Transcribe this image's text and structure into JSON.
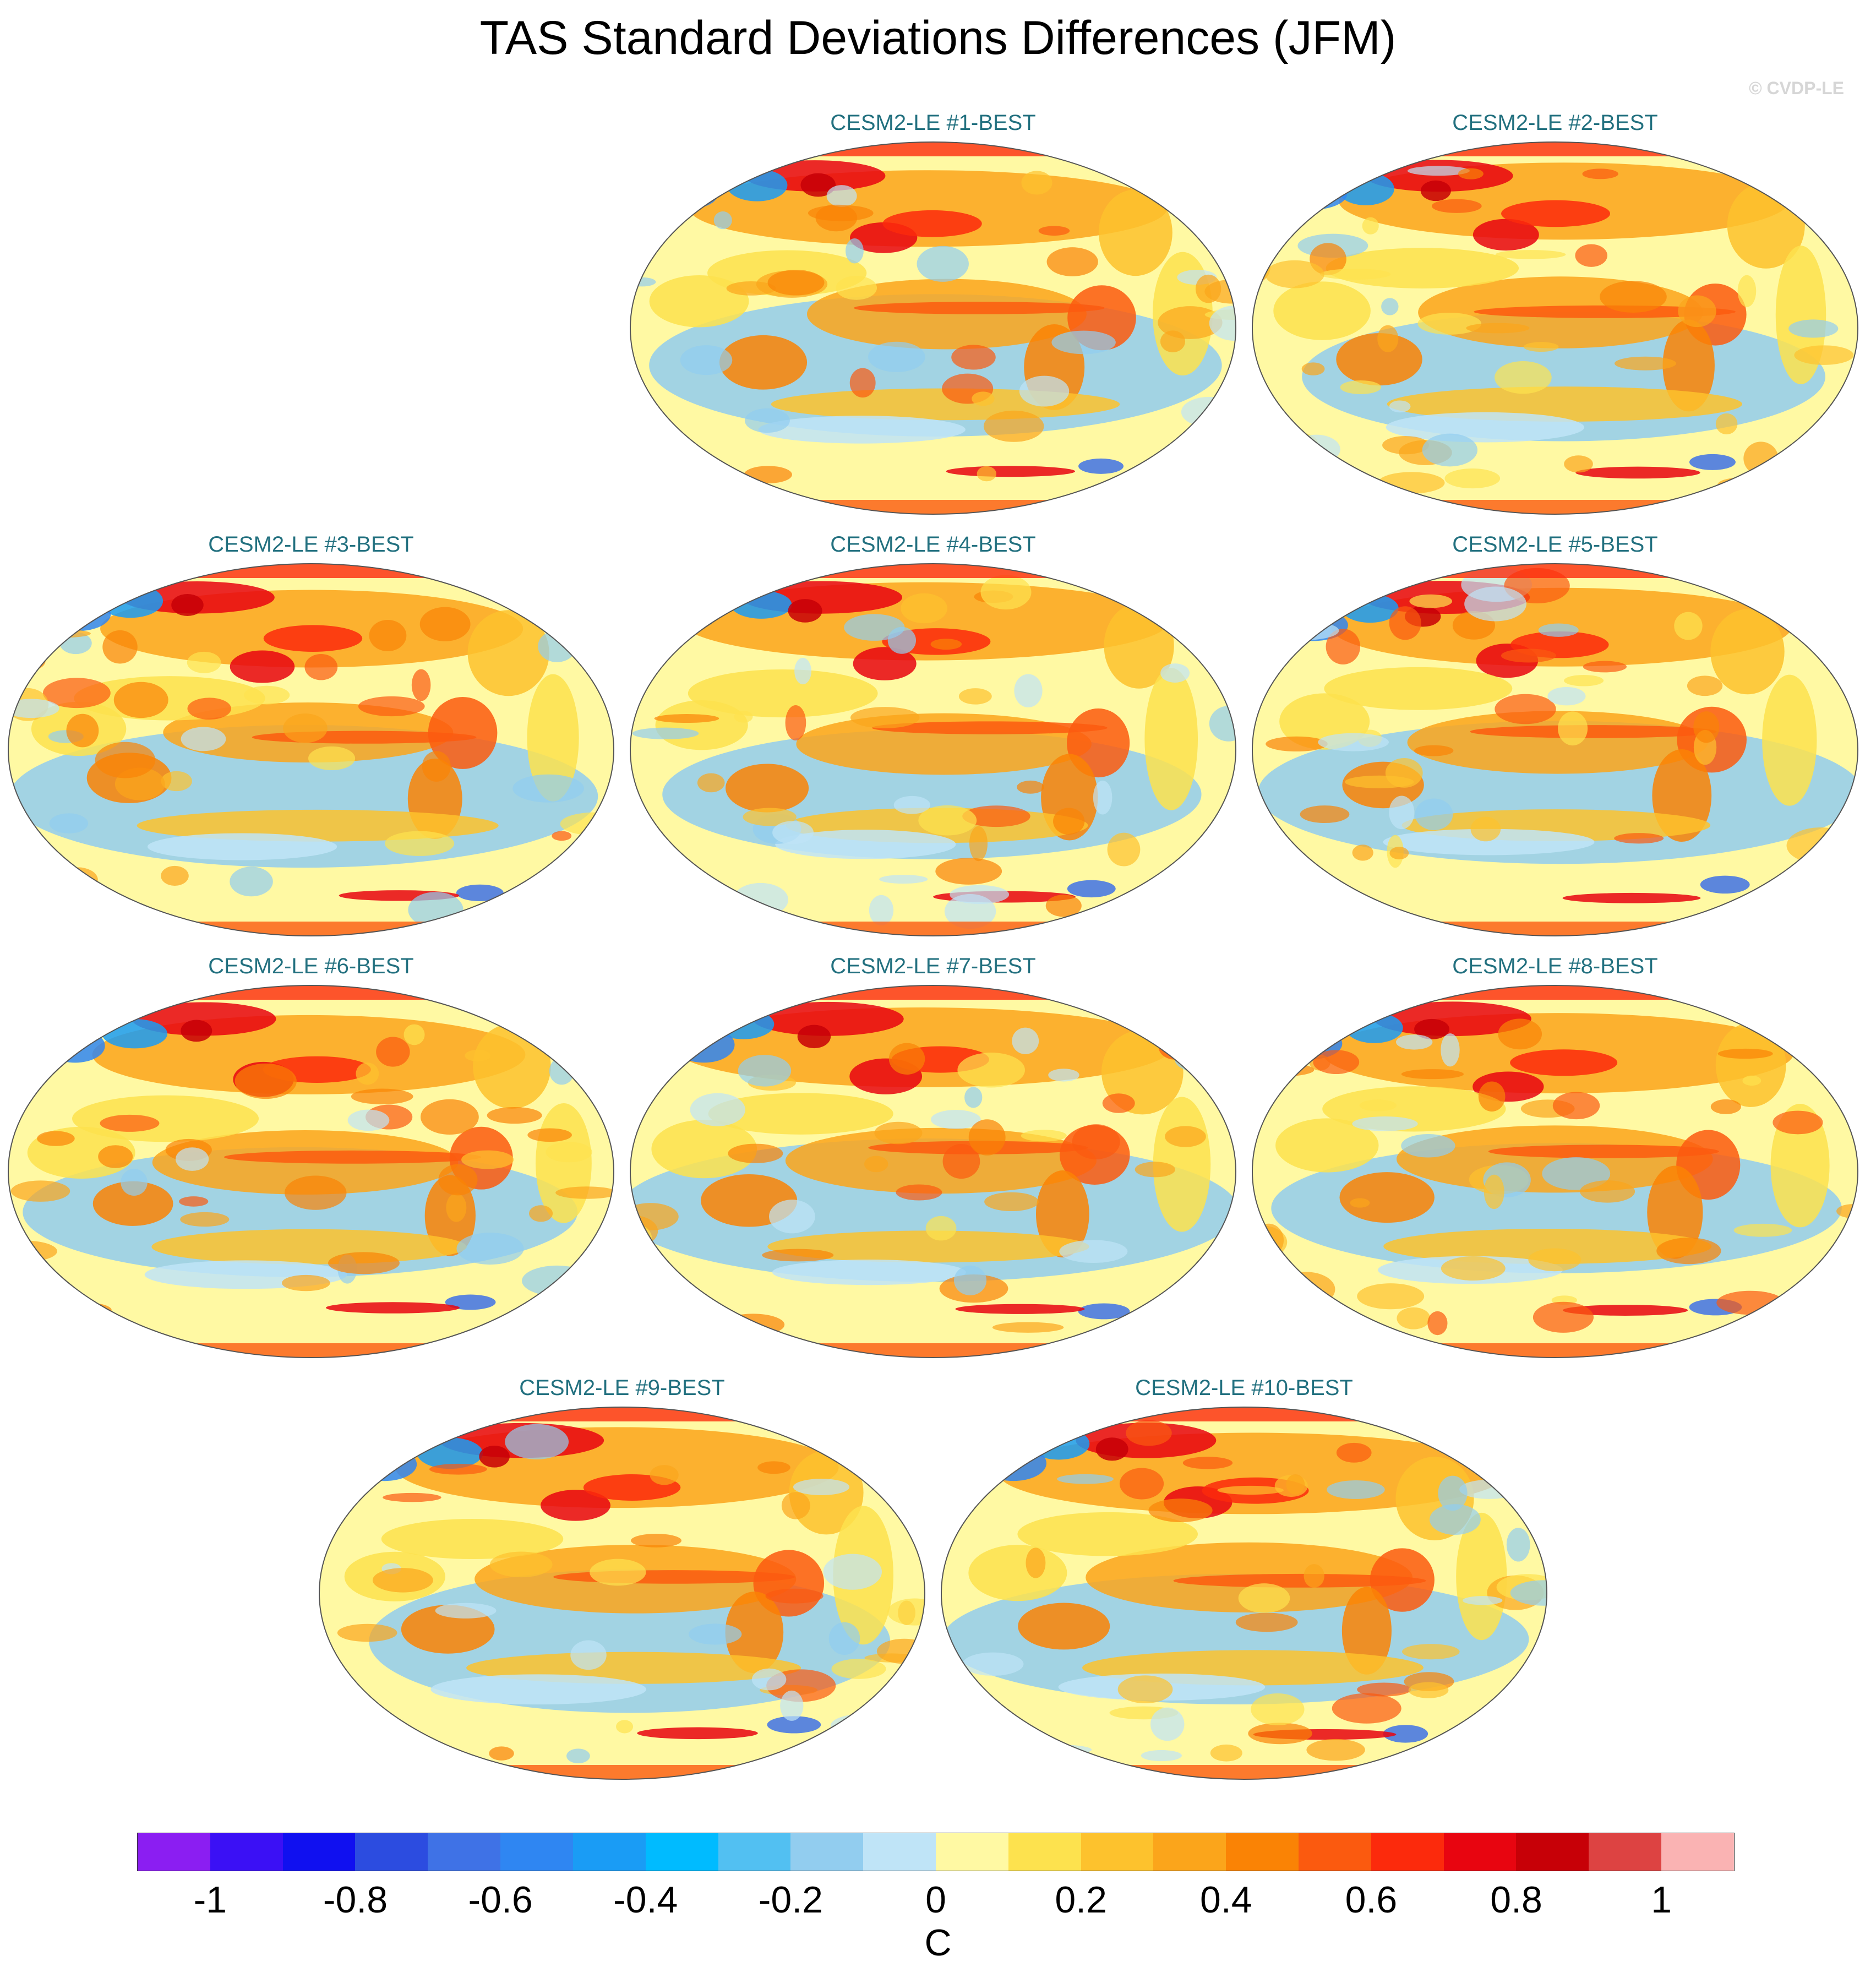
{
  "title": "TAS Standard Deviations Differences (JFM)",
  "copyright": "© CVDP-LE",
  "panels": [
    {
      "label": "CESM2-LE #1-BEST"
    },
    {
      "label": "CESM2-LE #2-BEST"
    },
    {
      "label": "CESM2-LE #3-BEST"
    },
    {
      "label": "CESM2-LE #4-BEST"
    },
    {
      "label": "CESM2-LE #5-BEST"
    },
    {
      "label": "CESM2-LE #6-BEST"
    },
    {
      "label": "CESM2-LE #7-BEST"
    },
    {
      "label": "CESM2-LE #8-BEST"
    },
    {
      "label": "CESM2-LE #9-BEST"
    },
    {
      "label": "CESM2-LE #10-BEST"
    }
  ],
  "colorbar": {
    "unit": "C",
    "colors": [
      "#8b1ef2",
      "#3b10f5",
      "#1010f0",
      "#2c4ce0",
      "#3f72e6",
      "#2f86f2",
      "#1a9cf5",
      "#00bbff",
      "#52c0f2",
      "#92cdef",
      "#bfe4f7",
      "#fff9a3",
      "#fde24e",
      "#fdc22d",
      "#fba51b",
      "#fa8305",
      "#fb5a0f",
      "#fc2a0c",
      "#e80510",
      "#c70007",
      "#dd4342",
      "#fab3b3"
    ],
    "tick_labels": [
      "-1",
      "-0.8",
      "-0.6",
      "-0.4",
      "-0.2",
      "0",
      "0.2",
      "0.4",
      "0.6",
      "0.8",
      "1"
    ]
  }
}
